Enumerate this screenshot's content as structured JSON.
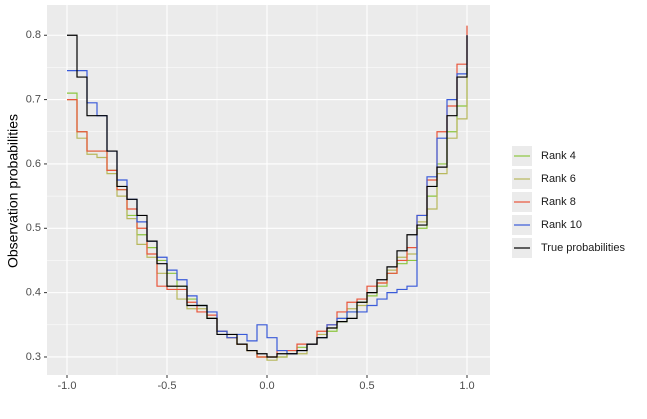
{
  "chart_data": {
    "type": "step",
    "y_label": "Observation probabilities",
    "x": [
      -1,
      -0.95,
      -0.9,
      -0.85,
      -0.8,
      -0.75,
      -0.7,
      -0.65,
      -0.6,
      -0.55,
      -0.5,
      -0.45,
      -0.4,
      -0.35,
      -0.3,
      -0.25,
      -0.2,
      -0.15,
      -0.1,
      -0.05,
      0,
      0.05,
      0.1,
      0.15,
      0.2,
      0.25,
      0.3,
      0.35,
      0.4,
      0.45,
      0.5,
      0.55,
      0.6,
      0.65,
      0.7,
      0.75,
      0.8,
      0.85,
      0.9,
      0.95,
      1
    ],
    "series": [
      {
        "name": "Rank 4",
        "color": "#8cc63f",
        "values": [
          0.71,
          0.65,
          0.62,
          0.62,
          0.59,
          0.56,
          0.52,
          0.49,
          0.47,
          0.45,
          0.43,
          0.41,
          0.39,
          0.38,
          0.36,
          0.34,
          0.33,
          0.32,
          0.31,
          0.3,
          0.3,
          0.3,
          0.31,
          0.315,
          0.32,
          0.33,
          0.34,
          0.355,
          0.37,
          0.385,
          0.395,
          0.41,
          0.43,
          0.445,
          0.45,
          0.5,
          0.55,
          0.6,
          0.65,
          0.69,
          0.75
        ]
      },
      {
        "name": "Rank 6",
        "color": "#b8b85c",
        "values": [
          0.7,
          0.64,
          0.615,
          0.61,
          0.585,
          0.55,
          0.515,
          0.475,
          0.455,
          0.43,
          0.41,
          0.39,
          0.375,
          0.375,
          0.36,
          0.34,
          0.33,
          0.32,
          0.31,
          0.3,
          0.295,
          0.3,
          0.305,
          0.305,
          0.32,
          0.335,
          0.345,
          0.36,
          0.375,
          0.38,
          0.4,
          0.415,
          0.435,
          0.455,
          0.46,
          0.51,
          0.53,
          0.585,
          0.64,
          0.67,
          0.75
        ]
      },
      {
        "name": "Rank 8",
        "color": "#e9553b",
        "values": [
          0.7,
          0.65,
          0.62,
          0.62,
          0.59,
          0.56,
          0.53,
          0.5,
          0.46,
          0.41,
          0.405,
          0.405,
          0.385,
          0.37,
          0.365,
          0.34,
          0.33,
          0.32,
          0.31,
          0.3,
          0.3,
          0.31,
          0.31,
          0.32,
          0.32,
          0.34,
          0.35,
          0.37,
          0.385,
          0.39,
          0.41,
          0.415,
          0.43,
          0.45,
          0.47,
          0.52,
          0.575,
          0.65,
          0.69,
          0.755,
          0.815
        ]
      },
      {
        "name": "Rank 10",
        "color": "#3a5bd9",
        "values": [
          0.745,
          0.745,
          0.695,
          0.675,
          0.62,
          0.575,
          0.545,
          0.51,
          0.48,
          0.455,
          0.435,
          0.42,
          0.395,
          0.38,
          0.37,
          0.34,
          0.33,
          0.335,
          0.325,
          0.35,
          0.33,
          0.31,
          0.305,
          0.31,
          0.32,
          0.33,
          0.35,
          0.36,
          0.37,
          0.37,
          0.38,
          0.39,
          0.4,
          0.405,
          0.41,
          0.52,
          0.58,
          0.64,
          0.7,
          0.74,
          0.8
        ]
      },
      {
        "name": "True probabilities",
        "color": "#000000",
        "values": [
          0.8,
          0.735,
          0.675,
          0.675,
          0.62,
          0.565,
          0.545,
          0.52,
          0.48,
          0.445,
          0.41,
          0.41,
          0.38,
          0.38,
          0.36,
          0.335,
          0.335,
          0.32,
          0.31,
          0.305,
          0.3,
          0.305,
          0.305,
          0.31,
          0.32,
          0.33,
          0.345,
          0.355,
          0.36,
          0.385,
          0.4,
          0.42,
          0.44,
          0.465,
          0.49,
          0.505,
          0.565,
          0.595,
          0.675,
          0.735,
          0.8
        ]
      }
    ],
    "xlim": [
      -1.1,
      1.115
    ],
    "ylim": [
      0.272,
      0.847
    ],
    "xticks": [
      {
        "value": -1,
        "label": "-1.0"
      },
      -0.5,
      {
        "value": 0,
        "label": "0.0"
      },
      0.5,
      {
        "value": 1,
        "label": "1.0"
      }
    ],
    "yticks": [
      0.3,
      0.4,
      0.5,
      0.6,
      0.7,
      0.8
    ],
    "grid": true,
    "legend": "right"
  }
}
